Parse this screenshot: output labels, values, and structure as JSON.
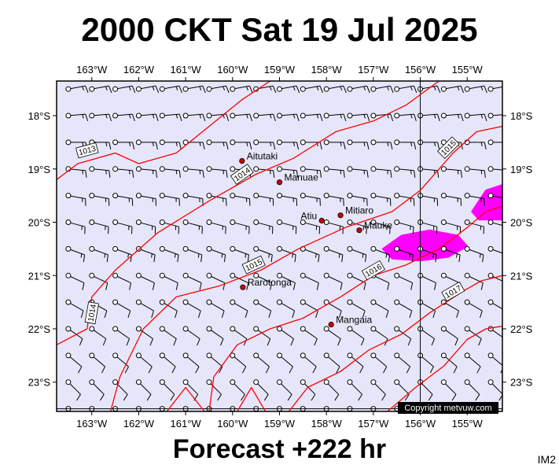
{
  "title": "2000 CKT Sat 19 Jul 2025",
  "subtitle": "Forecast +222 hr",
  "product_code": "IM2",
  "copyright": "Copyright metvuw.com",
  "colors": {
    "sea": "#e6e6fa",
    "isobar": "#ff0000",
    "rain": "#ff00ff",
    "town": "#cc0000",
    "wind": "#000000"
  },
  "axes": {
    "lon_labels": [
      "163°W",
      "162°W",
      "161°W",
      "160°W",
      "159°W",
      "158°W",
      "157°W",
      "156°W",
      "155°W"
    ],
    "lon_values": [
      -163,
      -162,
      -161,
      -160,
      -159,
      -158,
      -157,
      -156,
      -155
    ],
    "lat_labels": [
      "18°S",
      "19°S",
      "20°S",
      "21°S",
      "22°S",
      "23°S"
    ],
    "lat_values": [
      -18,
      -19,
      -20,
      -21,
      -22,
      -23
    ],
    "lon_range": [
      -163.75,
      -154.25
    ],
    "lat_range": [
      -23.55,
      -17.35
    ],
    "grid_lines": {
      "lon": -156,
      "lat": -23.5
    }
  },
  "isobars": [
    {
      "label": "1013",
      "points": [
        [
          -163.75,
          -19.2
        ],
        [
          -163.3,
          -18.9
        ],
        [
          -162.5,
          -18.7
        ],
        [
          -162,
          -18.9
        ],
        [
          -161.2,
          -18.7
        ],
        [
          -160.5,
          -18.2
        ],
        [
          -159.8,
          -17.7
        ],
        [
          -159.2,
          -17.35
        ]
      ]
    },
    {
      "label": "1014",
      "points": [
        [
          -163.75,
          -22.3
        ],
        [
          -163.1,
          -22.0
        ],
        [
          -163,
          -21.4
        ],
        [
          -162.5,
          -20.9
        ],
        [
          -161.6,
          -20.2
        ],
        [
          -160.5,
          -19.6
        ],
        [
          -159.5,
          -19.1
        ],
        [
          -158.7,
          -18.8
        ],
        [
          -157.8,
          -18.3
        ],
        [
          -157,
          -18.1
        ],
        [
          -156.3,
          -17.8
        ],
        [
          -155.6,
          -17.35
        ]
      ]
    },
    {
      "label": "1015",
      "points": [
        [
          -162.6,
          -23.55
        ],
        [
          -162.4,
          -22.9
        ],
        [
          -161.9,
          -22.0
        ],
        [
          -161.2,
          -21.4
        ],
        [
          -160.3,
          -21.2
        ],
        [
          -159.4,
          -20.9
        ],
        [
          -158.6,
          -20.5
        ],
        [
          -157.6,
          -20.1
        ],
        [
          -156.6,
          -19.8
        ],
        [
          -156,
          -19.4
        ],
        [
          -155.3,
          -18.7
        ],
        [
          -154.8,
          -18.3
        ],
        [
          -154.25,
          -18.2
        ]
      ]
    },
    {
      "label": "1016",
      "points": [
        [
          -160.5,
          -23.55
        ],
        [
          -160.4,
          -22.9
        ],
        [
          -159.9,
          -22.3
        ],
        [
          -159.2,
          -22.0
        ],
        [
          -158.5,
          -21.8
        ],
        [
          -157.7,
          -21.4
        ],
        [
          -157,
          -21.0
        ],
        [
          -156.3,
          -20.8
        ],
        [
          -155.6,
          -20.5
        ],
        [
          -155,
          -20.1
        ],
        [
          -154.6,
          -19.8
        ],
        [
          -154.25,
          -19.7
        ]
      ]
    },
    {
      "label": "1017",
      "points": [
        [
          -158.8,
          -23.55
        ],
        [
          -158.4,
          -23.1
        ],
        [
          -157.7,
          -22.8
        ],
        [
          -157.1,
          -22.4
        ],
        [
          -156.4,
          -22.1
        ],
        [
          -155.8,
          -21.7
        ],
        [
          -155.1,
          -21.3
        ],
        [
          -154.7,
          -21.1
        ],
        [
          -154.25,
          -21.0
        ]
      ]
    },
    {
      "label": "",
      "points": [
        [
          -156.7,
          -23.55
        ],
        [
          -156.1,
          -23.1
        ],
        [
          -155.5,
          -22.7
        ],
        [
          -155,
          -22.2
        ],
        [
          -154.6,
          -22.0
        ],
        [
          -154.25,
          -21.95
        ]
      ]
    },
    {
      "label": "",
      "points": [
        [
          -161.4,
          -23.55
        ],
        [
          -161,
          -23.1
        ],
        [
          -160.6,
          -23.55
        ]
      ]
    },
    {
      "label": "",
      "points": [
        [
          -159.9,
          -23.55
        ],
        [
          -159.6,
          -23.1
        ],
        [
          -159.3,
          -23.55
        ]
      ]
    }
  ],
  "towns": [
    {
      "name": "Aitutaki",
      "lon": -159.8,
      "lat": -18.85
    },
    {
      "name": "Manuae",
      "lon": -159.0,
      "lat": -19.25
    },
    {
      "name": "Atiu",
      "lon": -158.1,
      "lat": -19.97
    },
    {
      "name": "Mitiaro",
      "lon": -157.7,
      "lat": -19.87
    },
    {
      "name": "Mauke",
      "lon": -157.3,
      "lat": -20.15
    },
    {
      "name": "Rarotonga",
      "lon": -159.78,
      "lat": -21.22
    },
    {
      "name": "Mangaia",
      "lon": -157.9,
      "lat": -21.92
    }
  ],
  "rain_areas": [
    {
      "points": [
        [
          -156.8,
          -20.5
        ],
        [
          -156.4,
          -20.25
        ],
        [
          -155.8,
          -20.15
        ],
        [
          -155.2,
          -20.25
        ],
        [
          -155.0,
          -20.45
        ],
        [
          -155.4,
          -20.65
        ],
        [
          -156.0,
          -20.72
        ],
        [
          -156.6,
          -20.68
        ]
      ]
    },
    {
      "points": [
        [
          -154.9,
          -19.8
        ],
        [
          -154.6,
          -19.4
        ],
        [
          -154.25,
          -19.3
        ],
        [
          -154.25,
          -19.95
        ],
        [
          -154.75,
          -19.95
        ]
      ]
    }
  ],
  "wind_field": {
    "grid_lons": [
      -163.5,
      -163,
      -162.5,
      -162,
      -161.5,
      -161,
      -160.5,
      -160,
      -159.5,
      -159,
      -158.5,
      -158,
      -157.5,
      -157,
      -156.5,
      -156,
      -155.5,
      -155,
      -154.5
    ],
    "grid_lats": [
      -17.5,
      -18,
      -18.5,
      -19,
      -19.5,
      -20,
      -20.5,
      -21,
      -21.5,
      -22,
      -22.5,
      -23,
      -23.5
    ],
    "direction_north_deg": 80,
    "direction_south_deg": 140,
    "speed_kt_north": 15,
    "speed_kt_south": 10
  },
  "isobar_labels": [
    {
      "text": "1013",
      "lon": -163.1,
      "lat": -18.65,
      "angle": -15
    },
    {
      "text": "1014",
      "lon": -159.8,
      "lat": -19.1,
      "angle": -35
    },
    {
      "text": "1015",
      "lon": -159.55,
      "lat": -20.8,
      "angle": -25
    },
    {
      "text": "1016",
      "lon": -157.0,
      "lat": -20.9,
      "angle": -30
    },
    {
      "text": "1015",
      "lon": -155.4,
      "lat": -18.6,
      "angle": -45
    },
    {
      "text": "1014",
      "lon": -163.0,
      "lat": -21.7,
      "angle": -80
    },
    {
      "text": "1017",
      "lon": -155.3,
      "lat": -21.3,
      "angle": -30
    }
  ]
}
